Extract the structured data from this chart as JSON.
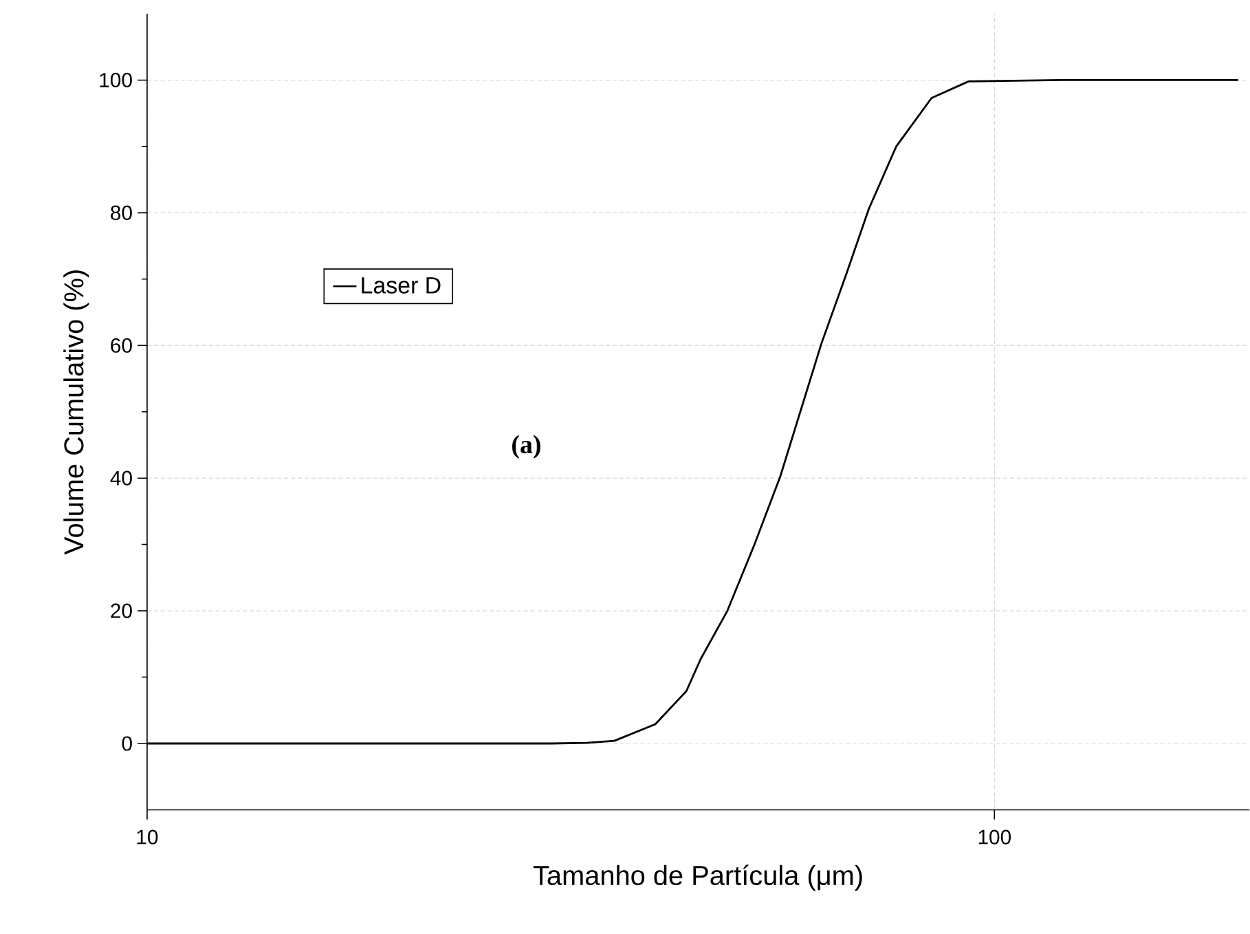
{
  "chart_data": {
    "type": "line",
    "xlabel": "Tamanho de Partícula (μm)",
    "ylabel": "Volume Cumulativo (%)",
    "annotations": [
      "(a)"
    ],
    "log": "x",
    "xlim": [
      10,
      200
    ],
    "ylim": [
      -10,
      110
    ],
    "xticks": [
      10,
      100
    ],
    "yticks": [
      0,
      20,
      40,
      60,
      80,
      100
    ],
    "grid": true,
    "legend": "left",
    "line_style": "solid",
    "marker": "none",
    "series": [
      {
        "name": "Laser D",
        "color": "#000000",
        "x": [
          10,
          20,
          30,
          33,
          35.6,
          39.8,
          43.3,
          45.0,
          48.4,
          52.1,
          55.9,
          62.5,
          66.8,
          71.1,
          76.6,
          84.3,
          93.2,
          120,
          194
        ],
        "values": [
          0,
          0,
          0,
          0.1,
          0.4,
          2.9,
          7.9,
          12.7,
          20,
          30,
          40.3,
          60.3,
          70.6,
          80.6,
          90,
          97.3,
          99.8,
          100,
          100
        ]
      }
    ]
  }
}
